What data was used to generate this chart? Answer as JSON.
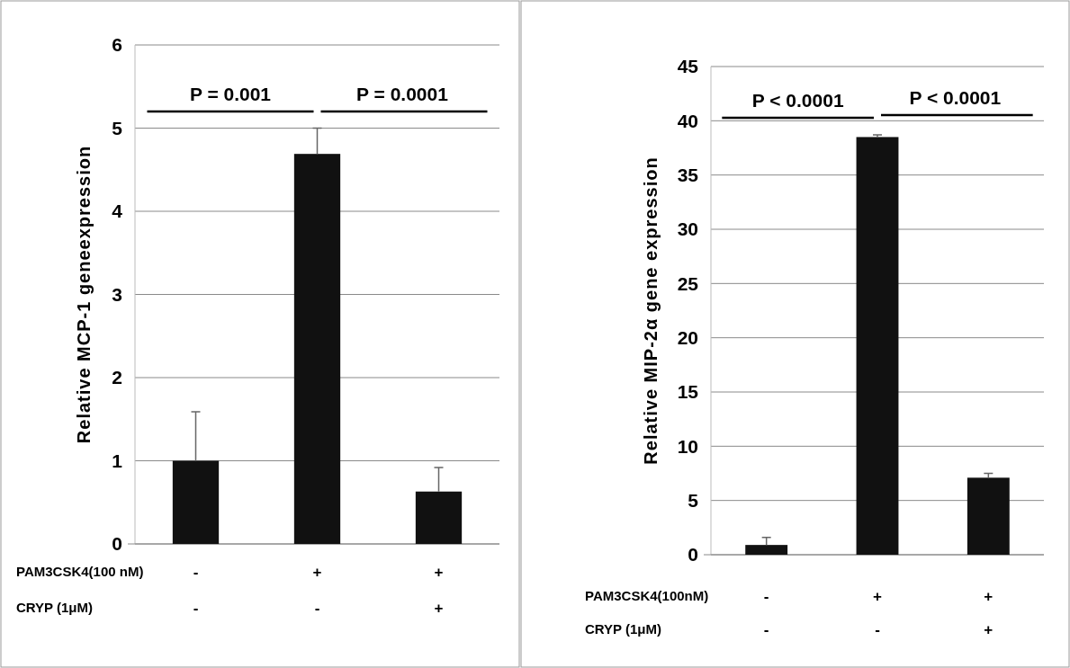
{
  "chart_data": [
    {
      "type": "bar",
      "ylabel": "Relative MCP-1 geneexpression",
      "categories": [
        "-",
        "+",
        "+"
      ],
      "values": [
        1.0,
        4.69,
        0.63
      ],
      "errors": [
        [
          1.0,
          1.59
        ],
        [
          4.69,
          5.0
        ],
        [
          0.63,
          0.92
        ]
      ],
      "color": "#111111",
      "ylim": [
        0,
        6
      ],
      "yticks": [
        0,
        1,
        2,
        3,
        4,
        5,
        6
      ],
      "grid": "y",
      "annotations": [
        "P = 0.001",
        "P = 0.0001",
        "PAM3CSK4(100 nM)",
        "CRYP (1μM)",
        "-",
        "-",
        "+"
      ]
    },
    {
      "type": "bar",
      "ylabel": "Relative MIP-2α gene expression",
      "categories": [
        "-",
        "+",
        "+"
      ],
      "values": [
        0.9,
        38.5,
        7.1
      ],
      "errors": [
        [
          0.9,
          1.6
        ],
        [
          38.5,
          38.7
        ],
        [
          7.1,
          7.5
        ]
      ],
      "color": "#111111",
      "ylim": [
        0,
        45
      ],
      "yticks": [
        0,
        5,
        10,
        15,
        20,
        25,
        30,
        35,
        40,
        45
      ],
      "grid": "y",
      "annotations": [
        "P < 0.0001",
        "P < 0.0001",
        "PAM3CSK4(100nM)",
        "CRYP (1μM)",
        "-",
        "-",
        "+"
      ]
    }
  ]
}
